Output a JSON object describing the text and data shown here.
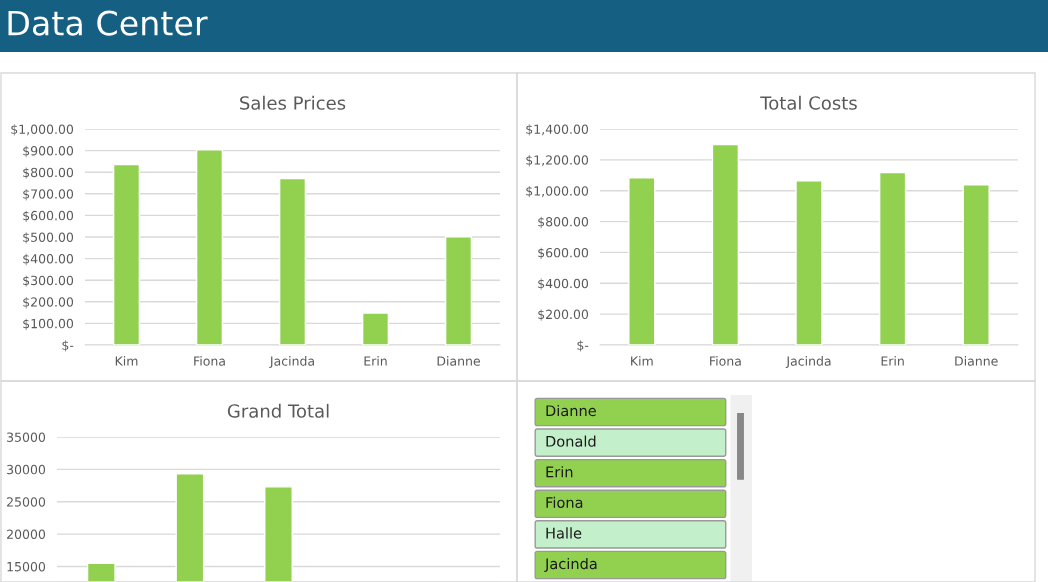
{
  "chart_data": [
    {
      "type": "other",
      "title": "Data Center"
    },
    {
      "type": "bar",
      "title": "Sales Prices",
      "categories": [
        "Kim",
        "Fiona",
        "Jacinda",
        "Erin",
        "Dianne"
      ],
      "values": [
        835,
        904,
        770,
        148,
        501
      ],
      "color": "#92d050",
      "ylim": [
        0,
        1000
      ],
      "yticks": [
        {
          "value": 0,
          "label": "$-"
        },
        {
          "value": 100,
          "label": "$100.00"
        },
        {
          "value": 200,
          "label": "$200.00"
        },
        {
          "value": 300,
          "label": "$300.00"
        },
        {
          "value": 400,
          "label": "$400.00"
        },
        {
          "value": 500,
          "label": "$500.00"
        },
        {
          "value": 600,
          "label": "$600.00"
        },
        {
          "value": 700,
          "label": "$700.00"
        },
        {
          "value": 800,
          "label": "$800.00"
        },
        {
          "value": 900,
          "label": "$900.00"
        },
        {
          "value": 1000,
          "label": "$1,000.00"
        }
      ],
      "grid": "y",
      "legend": false
    },
    {
      "type": "bar",
      "title": "Total Costs",
      "categories": [
        "Kim",
        "Fiona",
        "Jacinda",
        "Erin",
        "Dianne"
      ],
      "values": [
        1084,
        1299,
        1065,
        1117,
        1039
      ],
      "color": "#92d050",
      "ylim": [
        0,
        1400
      ],
      "yticks": [
        {
          "value": 0,
          "label": "$-"
        },
        {
          "value": 200,
          "label": "$200.00"
        },
        {
          "value": 400,
          "label": "$400.00"
        },
        {
          "value": 600,
          "label": "$600.00"
        },
        {
          "value": 800,
          "label": "$800.00"
        },
        {
          "value": 1000,
          "label": "$1,000.00"
        },
        {
          "value": 1200,
          "label": "$1,200.00"
        },
        {
          "value": 1400,
          "label": "$1,400.00"
        }
      ],
      "grid": "y",
      "legend": false
    },
    {
      "type": "bar",
      "title": "Grand Total",
      "categories": [
        null,
        null,
        null,
        null,
        null
      ],
      "values": [
        15500,
        29300,
        27300,
        null,
        null
      ],
      "color": "#92d050",
      "ylim": [
        12600,
        35000
      ],
      "yticks": [
        15000,
        20000,
        25000,
        30000,
        35000
      ],
      "grid": "y",
      "legend": false,
      "tick_labels": "y"
    },
    {
      "type": "other",
      "annotations": [
        "Dianne",
        "Donald",
        "Erin",
        "Fiona",
        "Halle",
        "Jacinda"
      ],
      "colors": [
        "#92d050",
        "#c3efcb",
        "#92d050",
        "#92d050",
        "#c3efcb",
        "#92d050"
      ]
    }
  ]
}
